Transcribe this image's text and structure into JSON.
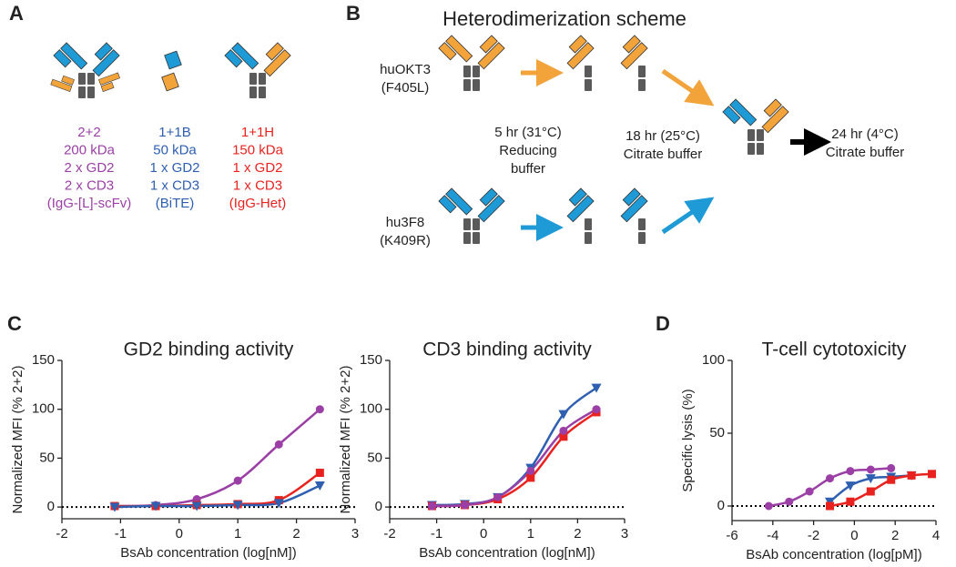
{
  "panel_labels": [
    "A",
    "B",
    "C",
    "D"
  ],
  "panel_a": {
    "columns": [
      {
        "color": "#9b3fa6",
        "lines": [
          "2+2",
          "200 kDa",
          "2 x GD2",
          "2 x CD3",
          "(IgG-[L]-scFv)"
        ]
      },
      {
        "color": "#2e5fb0",
        "lines": [
          "1+1B",
          "50 kDa",
          "1 x GD2",
          "1 x CD3",
          "(BiTE)"
        ]
      },
      {
        "color": "#e8231f",
        "lines": [
          "1+1H",
          "150 kDa",
          "1 x GD2",
          "1 x CD3",
          "(IgG-Het)"
        ]
      }
    ]
  },
  "panel_b": {
    "title": "Heterodimerization scheme",
    "top_antibody": [
      "huOKT3",
      "(F405L)"
    ],
    "bottom_antibody": [
      "hu3F8",
      "(K409R)"
    ],
    "step1": [
      "5 hr (31°C)",
      "Reducing",
      "buffer"
    ],
    "step2": [
      "18 hr (25°C)",
      "Citrate buffer"
    ],
    "step3": [
      "24 hr (4°C)",
      "Citrate buffer"
    ]
  },
  "chart_data": [
    {
      "type": "scatter",
      "title": "GD2 binding activity",
      "xlabel": "BsAb concentration (log[nM])",
      "ylabel": "Normalized MFI (% 2+2)",
      "x": [
        -1.1,
        -0.4,
        0.3,
        1.0,
        1.7,
        2.4
      ],
      "series": [
        {
          "color": "#9b3fa6",
          "marker": "circle",
          "values": [
            1,
            2,
            8,
            27,
            64,
            100
          ]
        },
        {
          "color": "#e8231f",
          "marker": "square",
          "values": [
            1,
            1,
            2,
            3,
            7,
            35
          ]
        },
        {
          "color": "#2e5fb0",
          "marker": "triangle",
          "values": [
            0,
            1,
            1,
            2,
            4,
            22
          ]
        }
      ],
      "xlim": [
        -2,
        3
      ],
      "ylim": [
        -12,
        150
      ],
      "xticks": [
        -2,
        -1,
        0,
        1,
        2,
        3
      ],
      "yticks": [
        0,
        50,
        100,
        150
      ],
      "reference_line": 0
    },
    {
      "type": "scatter",
      "title": "CD3 binding activity",
      "xlabel": "BsAb concentration (log[nM])",
      "ylabel": "Normalized MFI (% 2+2)",
      "x": [
        -1.1,
        -0.4,
        0.3,
        1.0,
        1.7,
        2.4
      ],
      "series": [
        {
          "color": "#2e5fb0",
          "marker": "triangle",
          "values": [
            2,
            3,
            10,
            40,
            95,
            122
          ]
        },
        {
          "color": "#e8231f",
          "marker": "square",
          "values": [
            1,
            2,
            8,
            30,
            72,
            97
          ]
        },
        {
          "color": "#9b3fa6",
          "marker": "circle",
          "values": [
            1,
            2,
            10,
            37,
            78,
            100
          ]
        }
      ],
      "xlim": [
        -2,
        3
      ],
      "ylim": [
        -12,
        150
      ],
      "xticks": [
        -2,
        -1,
        0,
        1,
        2,
        3
      ],
      "yticks": [
        0,
        50,
        100,
        150
      ],
      "reference_line": 0
    },
    {
      "type": "scatter",
      "title": "T-cell cytotoxicity",
      "xlabel": "BsAb concentration (log[pM])",
      "ylabel": "Specific lysis (%)",
      "x": [
        -4.2,
        -3.2,
        -2.2,
        -1.2,
        -0.2,
        0.8,
        1.8,
        2.8,
        3.8
      ],
      "series": [
        {
          "color": "#9b3fa6",
          "marker": "circle",
          "values": [
            0,
            3,
            10,
            19,
            24,
            25,
            26,
            null,
            null
          ]
        },
        {
          "color": "#2e5fb0",
          "marker": "triangle",
          "values": [
            null,
            null,
            null,
            3,
            14,
            19,
            20,
            21,
            null
          ]
        },
        {
          "color": "#e8231f",
          "marker": "square",
          "values": [
            null,
            null,
            null,
            0,
            3,
            10,
            18,
            21,
            22
          ]
        }
      ],
      "xlim": [
        -6,
        4
      ],
      "ylim": [
        -10,
        100
      ],
      "xticks": [
        -6,
        -4,
        -2,
        0,
        2,
        4
      ],
      "yticks": [
        0,
        50,
        100
      ],
      "reference_line": 0
    }
  ]
}
